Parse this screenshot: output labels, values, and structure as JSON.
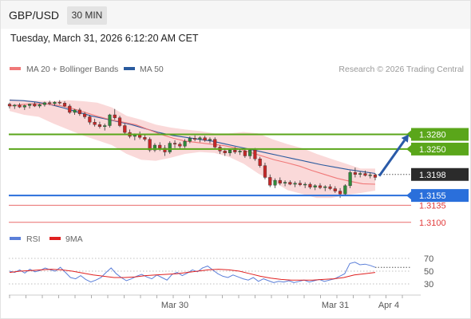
{
  "header": {
    "symbol": "GBP/USD",
    "timeframe": "30 MIN",
    "datetime": "Tuesday, March 31, 2026 6:12:20 AM CET"
  },
  "legend": {
    "ma20_bollinger": "MA 20 + Bollinger Bands",
    "ma50": "MA 50",
    "credit": "Research © 2026 Trading Central",
    "rsi": "RSI",
    "rsi_ma": "9MA"
  },
  "colors": {
    "resistance": "#5aa61a",
    "support_current": "#2a6fdb",
    "support": "#e23b3b",
    "current_price_bg": "#2b2b2b",
    "ma20": "#f07878",
    "ma50": "#2a5a9e",
    "bollinger": "#f9d5d5",
    "candle_up": "#2e8b3a",
    "candle_down": "#c62828",
    "rsi_line": "#5b7fd9",
    "rsi_ma_line": "#e02020",
    "arrow": "#2a5aa8"
  },
  "chart_data": [
    {
      "type": "candlestick",
      "title": "GBP/USD 30 MIN",
      "ylim": [
        1.3085,
        1.34
      ],
      "levels": [
        {
          "name": "resistance",
          "value": 1.328,
          "label": "1.3280"
        },
        {
          "name": "resistance",
          "value": 1.325,
          "label": "1.3250"
        },
        {
          "name": "current",
          "value": 1.3198,
          "label": "1.3198"
        },
        {
          "name": "support",
          "value": 1.3155,
          "label": "1.3155"
        },
        {
          "name": "support",
          "value": 1.3135,
          "label": "1.3135"
        },
        {
          "name": "support",
          "value": 1.31,
          "label": "1.3100"
        }
      ],
      "forecast_arrow": {
        "from": 1.3195,
        "to": 1.328
      },
      "candles": [
        [
          1.3342,
          1.3345,
          1.3333,
          1.3338
        ],
        [
          1.3338,
          1.3342,
          1.3332,
          1.334
        ],
        [
          1.334,
          1.3344,
          1.3334,
          1.3336
        ],
        [
          1.3336,
          1.3341,
          1.333,
          1.3339
        ],
        [
          1.3339,
          1.3343,
          1.3333,
          1.3342
        ],
        [
          1.3342,
          1.3346,
          1.3336,
          1.3338
        ],
        [
          1.3338,
          1.3343,
          1.3334,
          1.3341
        ],
        [
          1.3341,
          1.3347,
          1.3337,
          1.3345
        ],
        [
          1.3345,
          1.3349,
          1.334,
          1.3343
        ],
        [
          1.3343,
          1.3348,
          1.3339,
          1.3346
        ],
        [
          1.3346,
          1.335,
          1.3341,
          1.3344
        ],
        [
          1.3344,
          1.3348,
          1.3336,
          1.3338
        ],
        [
          1.3338,
          1.3342,
          1.3322,
          1.3325
        ],
        [
          1.3325,
          1.3332,
          1.332,
          1.333
        ],
        [
          1.333,
          1.3334,
          1.3318,
          1.3322
        ],
        [
          1.3322,
          1.3326,
          1.3312,
          1.3316
        ],
        [
          1.3316,
          1.332,
          1.33,
          1.3305
        ],
        [
          1.3305,
          1.3312,
          1.3296,
          1.33
        ],
        [
          1.33,
          1.3306,
          1.3292,
          1.3296
        ],
        [
          1.3296,
          1.3302,
          1.3288,
          1.3298
        ],
        [
          1.3298,
          1.3322,
          1.3294,
          1.332
        ],
        [
          1.332,
          1.3332,
          1.331,
          1.3314
        ],
        [
          1.3314,
          1.3318,
          1.3295,
          1.3298
        ],
        [
          1.3298,
          1.3302,
          1.328,
          1.3284
        ],
        [
          1.3284,
          1.329,
          1.3272,
          1.3276
        ],
        [
          1.3276,
          1.3282,
          1.3268,
          1.328
        ],
        [
          1.328,
          1.3286,
          1.327,
          1.3274
        ],
        [
          1.3274,
          1.328,
          1.3266,
          1.327
        ],
        [
          1.327,
          1.3274,
          1.3244,
          1.3248
        ],
        [
          1.3248,
          1.3262,
          1.3244,
          1.3258
        ],
        [
          1.3258,
          1.3264,
          1.3246,
          1.3252
        ],
        [
          1.3252,
          1.3258,
          1.3236,
          1.3244
        ],
        [
          1.3244,
          1.3266,
          1.324,
          1.3262
        ],
        [
          1.3262,
          1.3268,
          1.3252,
          1.326
        ],
        [
          1.326,
          1.3264,
          1.325,
          1.3256
        ],
        [
          1.3256,
          1.327,
          1.3252,
          1.3266
        ],
        [
          1.3266,
          1.3276,
          1.3262,
          1.3272
        ],
        [
          1.3272,
          1.3278,
          1.3266,
          1.327
        ],
        [
          1.327,
          1.3276,
          1.3264,
          1.3273
        ],
        [
          1.3273,
          1.3277,
          1.3265,
          1.3268
        ],
        [
          1.3268,
          1.3274,
          1.3262,
          1.327
        ],
        [
          1.327,
          1.3274,
          1.325,
          1.3254
        ],
        [
          1.3254,
          1.3258,
          1.324,
          1.3246
        ],
        [
          1.3246,
          1.3252,
          1.3236,
          1.3242
        ],
        [
          1.3242,
          1.325,
          1.3236,
          1.3248
        ],
        [
          1.3248,
          1.3254,
          1.324,
          1.3244
        ],
        [
          1.3244,
          1.325,
          1.3238,
          1.3246
        ],
        [
          1.3246,
          1.3252,
          1.3232,
          1.3236
        ],
        [
          1.3236,
          1.325,
          1.323,
          1.3248
        ],
        [
          1.3248,
          1.3252,
          1.3226,
          1.323
        ],
        [
          1.323,
          1.3234,
          1.3212,
          1.3216
        ],
        [
          1.3216,
          1.3222,
          1.3188,
          1.3192
        ],
        [
          1.3192,
          1.3198,
          1.3172,
          1.3176
        ],
        [
          1.3176,
          1.319,
          1.317,
          1.3186
        ],
        [
          1.3186,
          1.3192,
          1.3176,
          1.318
        ],
        [
          1.318,
          1.3186,
          1.3174,
          1.3182
        ],
        [
          1.3182,
          1.3186,
          1.3176,
          1.3178
        ],
        [
          1.3178,
          1.3184,
          1.3172,
          1.318
        ],
        [
          1.318,
          1.3186,
          1.3174,
          1.3177
        ],
        [
          1.3177,
          1.3182,
          1.317,
          1.3178
        ],
        [
          1.3178,
          1.3182,
          1.3168,
          1.3172
        ],
        [
          1.3172,
          1.3178,
          1.3166,
          1.3175
        ],
        [
          1.3175,
          1.318,
          1.3168,
          1.3171
        ],
        [
          1.3171,
          1.3176,
          1.3164,
          1.3173
        ],
        [
          1.3173,
          1.3178,
          1.3166,
          1.3169
        ],
        [
          1.3169,
          1.3174,
          1.316,
          1.3164
        ],
        [
          1.3164,
          1.317,
          1.315,
          1.3158
        ],
        [
          1.3158,
          1.3178,
          1.3154,
          1.3175
        ],
        [
          1.3175,
          1.3206,
          1.317,
          1.3202
        ],
        [
          1.3202,
          1.3212,
          1.3192,
          1.3198
        ],
        [
          1.3198,
          1.3204,
          1.3192,
          1.32
        ],
        [
          1.32,
          1.3206,
          1.3194,
          1.3196
        ],
        [
          1.3196,
          1.3202,
          1.319,
          1.3197
        ],
        [
          1.3197,
          1.32,
          1.3186,
          1.3192
        ]
      ],
      "ma20": [
        1.3338,
        1.3341,
        1.3343,
        1.3342,
        1.3339,
        1.3333,
        1.3325,
        1.3317,
        1.331,
        1.3305,
        1.33,
        1.329,
        1.328,
        1.3272,
        1.3266,
        1.3263,
        1.326,
        1.3257,
        1.3252,
        1.3244,
        1.3236,
        1.3228,
        1.3222,
        1.3215,
        1.3206,
        1.3198,
        1.319,
        1.3184,
        1.3179,
        1.3178
      ],
      "ma50": [
        1.335,
        1.3349,
        1.3346,
        1.3341,
        1.3334,
        1.3326,
        1.3318,
        1.3312,
        1.3306,
        1.33,
        1.3292,
        1.3284,
        1.3278,
        1.3274,
        1.327,
        1.3266,
        1.326,
        1.3254,
        1.3248,
        1.3242,
        1.3236,
        1.323,
        1.3224,
        1.3218,
        1.3213,
        1.3208,
        1.3204,
        1.32
      ],
      "bollinger_upper": [
        1.3352,
        1.335,
        1.3349,
        1.3348,
        1.335,
        1.3348,
        1.3345,
        1.3335,
        1.3318,
        1.331,
        1.33,
        1.3294,
        1.329,
        1.3287,
        1.3282,
        1.3282,
        1.3285,
        1.3282,
        1.327,
        1.326,
        1.3252,
        1.324,
        1.323,
        1.322,
        1.321,
        1.321
      ],
      "bollinger_lower": [
        1.3328,
        1.332,
        1.3316,
        1.3302,
        1.329,
        1.3278,
        1.3268,
        1.3258,
        1.324,
        1.3228,
        1.3226,
        1.3232,
        1.324,
        1.3244,
        1.3242,
        1.3234,
        1.322,
        1.32,
        1.3184,
        1.3166,
        1.3158,
        1.315,
        1.315,
        1.3156,
        1.316,
        1.3165
      ]
    },
    {
      "type": "line",
      "title": "RSI",
      "ylim": [
        15,
        85
      ],
      "yticks": [
        30,
        50,
        70
      ],
      "x_labels": [
        "Mar 30",
        "Mar 31",
        "Apr 4"
      ],
      "series": [
        {
          "name": "RSI",
          "values": [
            50,
            48,
            52,
            47,
            53,
            49,
            51,
            55,
            52,
            50,
            56,
            48,
            40,
            38,
            43,
            37,
            33,
            36,
            40,
            48,
            55,
            46,
            40,
            35,
            38,
            42,
            45,
            41,
            38,
            44,
            40,
            36,
            45,
            48,
            43,
            47,
            52,
            49,
            55,
            58,
            52,
            46,
            42,
            40,
            44,
            41,
            38,
            36,
            40,
            34,
            38,
            35,
            32,
            34,
            33,
            35,
            32,
            34,
            36,
            33,
            35,
            37,
            34,
            36,
            38,
            42,
            46,
            62,
            64,
            60,
            61,
            59,
            56
          ]
        },
        {
          "name": "9MA",
          "values": [
            48,
            50,
            51,
            52,
            53,
            52,
            50,
            47,
            44,
            42,
            40,
            40,
            41,
            43,
            44,
            45,
            46,
            48,
            50,
            52,
            53,
            52,
            50,
            46,
            42,
            39,
            37,
            36,
            36,
            36,
            37,
            38,
            40,
            44,
            46,
            48
          ]
        }
      ]
    }
  ]
}
